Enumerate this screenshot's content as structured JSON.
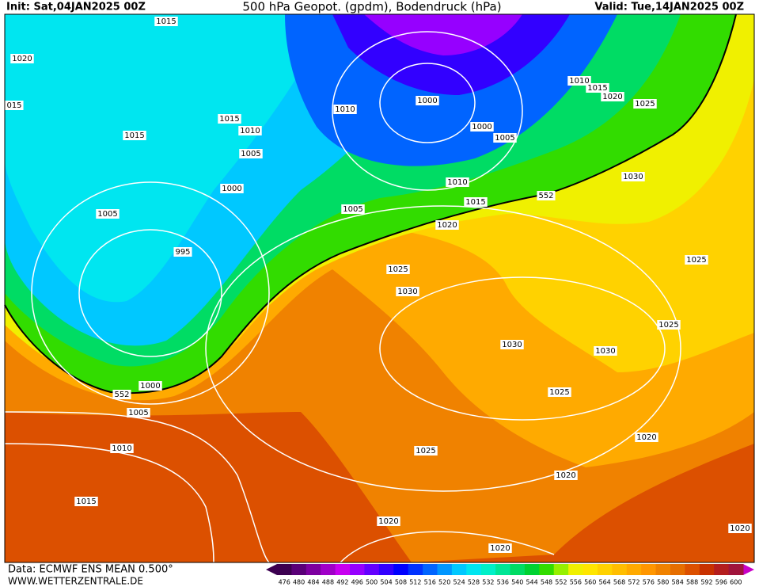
{
  "header": {
    "init": "Init: Sat,04JAN2025 00Z",
    "title": "500 hPa Geopot. (gpdm), Bodendruck (hPa)",
    "valid": "Valid: Tue,14JAN2025 00Z"
  },
  "footer": {
    "source": "Data: ECMWF ENS MEAN 0.500°",
    "site": "WWW.WETTERZENTRALE.DE"
  },
  "isobar_labels": [
    "1015",
    "1020",
    "015",
    "1015",
    "1015",
    "1010",
    "1005",
    "1000",
    "1005",
    "995",
    "1010",
    "1005",
    "1000",
    "1000",
    "1005",
    "1010",
    "1015",
    "1020",
    "1025",
    "1030",
    "1010",
    "1015",
    "1020",
    "1025",
    "1030",
    "1025",
    "1025",
    "1030",
    "1030",
    "1025",
    "1000",
    "1005",
    "1010",
    "1015",
    "1025",
    "1020",
    "1020",
    "1020",
    "1020",
    "1020",
    "552",
    "552"
  ],
  "colorbar": {
    "labels": [
      "476",
      "480",
      "484",
      "488",
      "492",
      "496",
      "500",
      "504",
      "508",
      "512",
      "516",
      "520",
      "524",
      "528",
      "532",
      "536",
      "540",
      "544",
      "548",
      "552",
      "556",
      "560",
      "564",
      "568",
      "572",
      "576",
      "580",
      "584",
      "588",
      "592",
      "596",
      "600"
    ],
    "colors": [
      "#3c0050",
      "#5a0078",
      "#7d00a0",
      "#a000c8",
      "#c800f0",
      "#9600ff",
      "#6400ff",
      "#3200ff",
      "#0000ff",
      "#0032ff",
      "#0064ff",
      "#0096ff",
      "#00c8ff",
      "#00e6f0",
      "#00f0c8",
      "#00e696",
      "#00dc64",
      "#00d232",
      "#32dc00",
      "#96f000",
      "#f0f000",
      "#ffe600",
      "#ffd200",
      "#ffbe00",
      "#ffaa00",
      "#ff9600",
      "#f08200",
      "#e66e00",
      "#dc5000",
      "#c83200",
      "#b41e1e",
      "#a0143c"
    ]
  }
}
